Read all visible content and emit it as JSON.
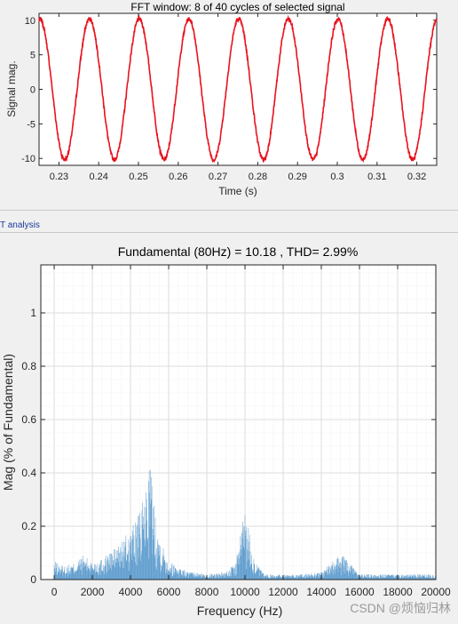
{
  "panel_label": "T analysis",
  "watermark": "CSDN @烦恼归林",
  "chart_data": [
    {
      "type": "line",
      "title": "FFT window: 8 of 40 cycles of selected signal",
      "xlabel": "Time (s)",
      "ylabel": "Signal mag.",
      "xlim": [
        0.225,
        0.325
      ],
      "ylim": [
        -11,
        11
      ],
      "xticks": [
        0.23,
        0.24,
        0.25,
        0.26,
        0.27,
        0.28,
        0.29,
        0.3,
        0.31,
        0.32
      ],
      "xtick_labels": [
        "0.23",
        "0.24",
        "0.25",
        "0.26",
        "0.27",
        "0.28",
        "0.29",
        "0.3",
        "0.31",
        "0.32"
      ],
      "yticks": [
        -10,
        -5,
        0,
        5,
        10
      ],
      "ytick_labels": [
        "-10",
        "-5",
        "0",
        "5",
        "10"
      ],
      "color": "#e8121d",
      "series": [
        {
          "amplitude": 10.18,
          "frequency_hz": 80,
          "peak_times": [
            0.2252,
            0.2375,
            0.25,
            0.2625,
            0.275,
            0.2875,
            0.3,
            0.3125,
            0.325
          ],
          "trough_times": [
            0.2313,
            0.2438,
            0.2563,
            0.2688,
            0.2813,
            0.2938,
            0.3063,
            0.3188
          ]
        }
      ]
    },
    {
      "type": "bar",
      "title": "Fundamental (80Hz) = 10.18 , THD= 2.99%",
      "xlabel": "Frequency (Hz)",
      "ylabel": "Mag (% of Fundamental)",
      "xlim": [
        -700,
        20000
      ],
      "ylim": [
        0,
        1.18
      ],
      "xticks": [
        0,
        2000,
        4000,
        6000,
        8000,
        10000,
        12000,
        14000,
        16000,
        18000,
        20000
      ],
      "xtick_labels": [
        "0",
        "2000",
        "4000",
        "6000",
        "8000",
        "10000",
        "12000",
        "14000",
        "16000",
        "18000",
        "20000"
      ],
      "yticks": [
        0,
        0.2,
        0.4,
        0.6,
        0.8,
        1
      ],
      "ytick_labels": [
        "0",
        "0.2",
        "0.4",
        "0.6",
        "0.8",
        "1"
      ],
      "grid": true,
      "color": "#4a90c8",
      "series": [
        {
          "envelope_freq": [
            0,
            500,
            1000,
            1500,
            2000,
            2500,
            3000,
            3500,
            4000,
            4500,
            4800,
            5000,
            5200,
            5500,
            6000,
            6500,
            7000,
            8000,
            9000,
            9500,
            10000,
            10500,
            11000,
            12000,
            13000,
            14000,
            14500,
            15000,
            15500,
            16000,
            17000,
            18000,
            19000,
            20000
          ],
          "envelope_mag": [
            0.07,
            0.05,
            0.06,
            0.09,
            0.07,
            0.08,
            0.11,
            0.14,
            0.19,
            0.25,
            0.35,
            0.48,
            0.32,
            0.17,
            0.07,
            0.05,
            0.03,
            0.02,
            0.03,
            0.06,
            0.28,
            0.07,
            0.02,
            0.02,
            0.02,
            0.03,
            0.06,
            0.1,
            0.06,
            0.02,
            0.02,
            0.02,
            0.02,
            0.02
          ]
        }
      ]
    }
  ]
}
